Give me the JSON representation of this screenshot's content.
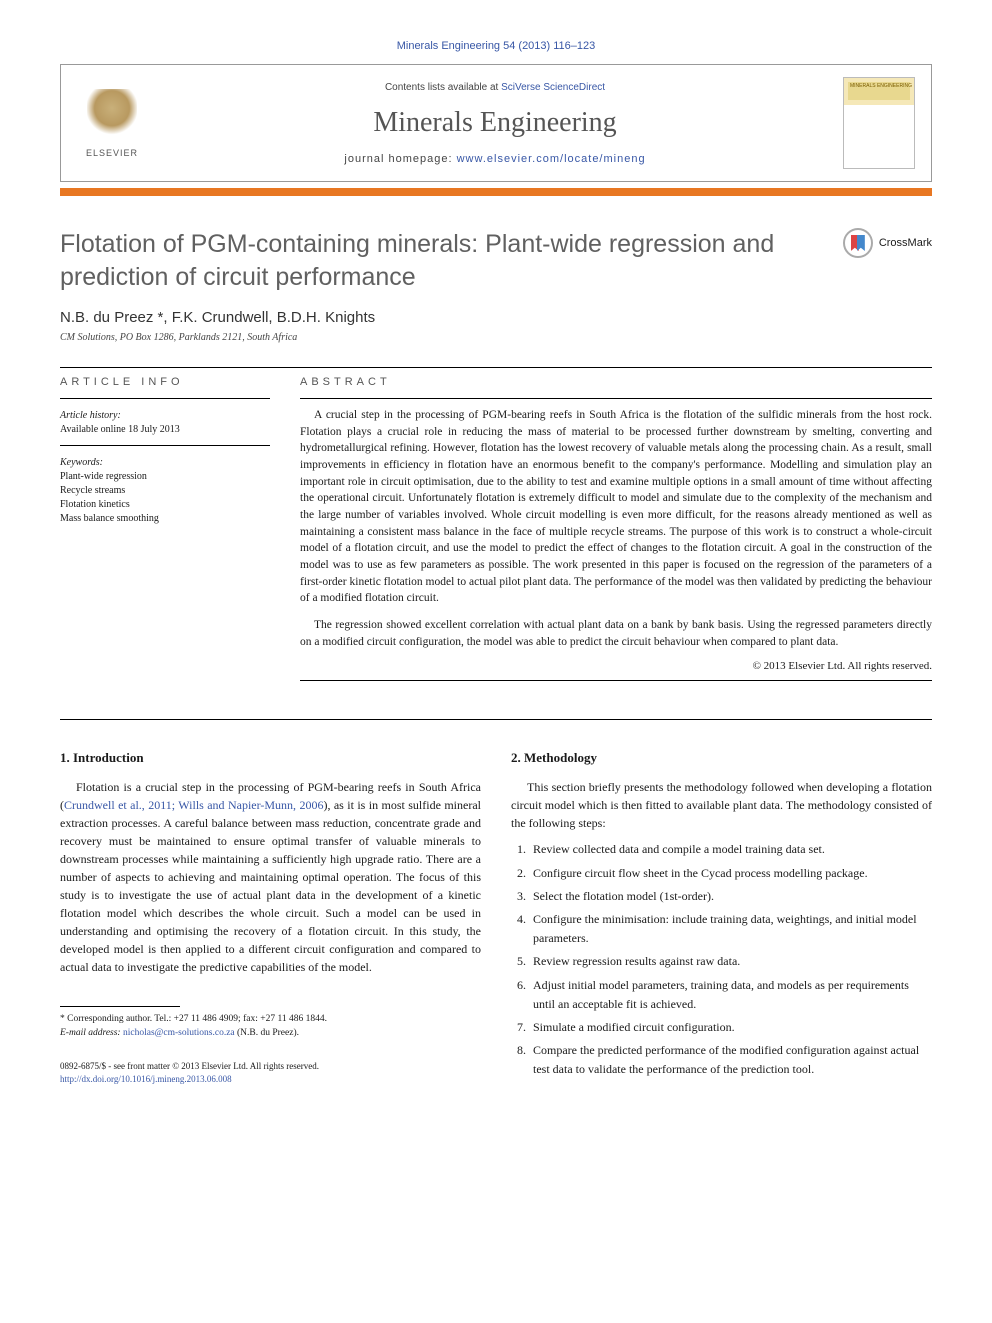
{
  "header": {
    "citation": "Minerals Engineering 54 (2013) 116–123",
    "contents_prefix": "Contents lists available at ",
    "contents_link": "SciVerse ScienceDirect",
    "journal": "Minerals Engineering",
    "homepage_prefix": "journal homepage: ",
    "homepage_url": "www.elsevier.com/locate/mineng",
    "publisher": "ELSEVIER",
    "cover_label": "MINERALS ENGINEERING"
  },
  "crossmark": {
    "label": "CrossMark"
  },
  "title": "Flotation of PGM-containing minerals: Plant-wide regression and prediction of circuit performance",
  "authors": "N.B. du Preez *, F.K. Crundwell, B.D.H. Knights",
  "affiliation": "CM Solutions, PO Box 1286, Parklands 2121, South Africa",
  "info": {
    "label": "ARTICLE INFO",
    "history_heading": "Article history:",
    "history_line": "Available online 18 July 2013",
    "keywords_heading": "Keywords:",
    "keywords": [
      "Plant-wide regression",
      "Recycle streams",
      "Flotation kinetics",
      "Mass balance smoothing"
    ]
  },
  "abstract": {
    "label": "ABSTRACT",
    "para1": "A crucial step in the processing of PGM-bearing reefs in South Africa is the flotation of the sulfidic minerals from the host rock. Flotation plays a crucial role in reducing the mass of material to be processed further downstream by smelting, converting and hydrometallurgical refining. However, flotation has the lowest recovery of valuable metals along the processing chain. As a result, small improvements in efficiency in flotation have an enormous benefit to the company's performance. Modelling and simulation play an important role in circuit optimisation, due to the ability to test and examine multiple options in a small amount of time without affecting the operational circuit. Unfortunately flotation is extremely difficult to model and simulate due to the complexity of the mechanism and the large number of variables involved. Whole circuit modelling is even more difficult, for the reasons already mentioned as well as maintaining a consistent mass balance in the face of multiple recycle streams. The purpose of this work is to construct a whole-circuit model of a flotation circuit, and use the model to predict the effect of changes to the flotation circuit. A goal in the construction of the model was to use as few parameters as possible. The work presented in this paper is focused on the regression of the parameters of a first-order kinetic flotation model to actual pilot plant data. The performance of the model was then validated by predicting the behaviour of a modified flotation circuit.",
    "para2": "The regression showed excellent correlation with actual plant data on a bank by bank basis. Using the regressed parameters directly on a modified circuit configuration, the model was able to predict the circuit behaviour when compared to plant data.",
    "copyright": "© 2013 Elsevier Ltd. All rights reserved."
  },
  "intro": {
    "heading": "1. Introduction",
    "para_pre": "Flotation is a crucial step in the processing of PGM-bearing reefs in South Africa (",
    "para_link": "Crundwell et al., 2011; Wills and Napier-Munn, 2006",
    "para_post": "), as it is in most sulfide mineral extraction processes. A careful balance between mass reduction, concentrate grade and recovery must be maintained to ensure optimal transfer of valuable minerals to downstream processes while maintaining a sufficiently high upgrade ratio. There are a number of aspects to achieving and maintaining optimal operation. The focus of this study is to investigate the use of actual plant data in the development of a kinetic flotation model which describes the whole circuit. Such a model can be used in understanding and optimising the recovery of a flotation circuit. In this study, the developed model is then applied to a different circuit configuration and compared to actual data to investigate the predictive capabilities of the model."
  },
  "methodology": {
    "heading": "2. Methodology",
    "intro": "This section briefly presents the methodology followed when developing a flotation circuit model which is then fitted to available plant data. The methodology consisted of the following steps:",
    "steps": [
      "Review collected data and compile a model training data set.",
      "Configure circuit flow sheet in the Cycad process modelling package.",
      "Select the flotation model (1st-order).",
      "Configure the minimisation: include training data, weightings, and initial model parameters.",
      "Review regression results against raw data.",
      "Adjust initial model parameters, training data, and models as per requirements until an acceptable fit is achieved.",
      "Simulate a modified circuit configuration.",
      "Compare the predicted performance of the modified configuration against actual test data to validate the performance of the prediction tool."
    ]
  },
  "footnote": {
    "corresponding": "* Corresponding author. Tel.: +27 11 486 4909; fax: +27 11 486 1844.",
    "email_label": "E-mail address: ",
    "email": "nicholas@cm-solutions.co.za",
    "email_suffix": " (N.B. du Preez)."
  },
  "bottom": {
    "issn": "0892-6875/$ - see front matter © 2013 Elsevier Ltd. All rights reserved.",
    "doi": "http://dx.doi.org/10.1016/j.mineng.2013.06.008"
  },
  "colors": {
    "link": "#3857a6",
    "accent": "#e87722",
    "title_gray": "#606060"
  }
}
